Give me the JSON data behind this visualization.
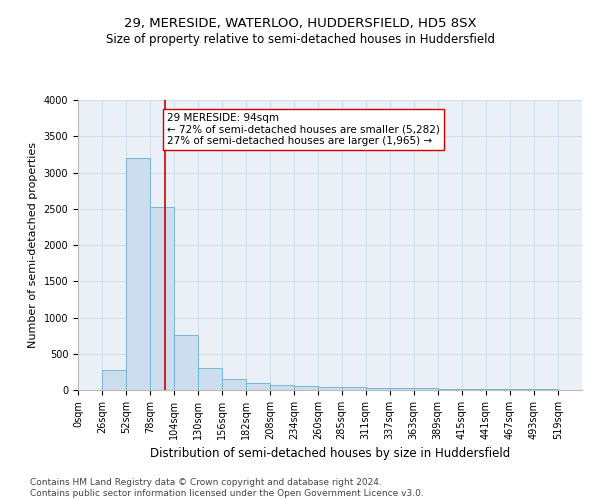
{
  "title": "29, MERESIDE, WATERLOO, HUDDERSFIELD, HD5 8SX",
  "subtitle": "Size of property relative to semi-detached houses in Huddersfield",
  "xlabel": "Distribution of semi-detached houses by size in Huddersfield",
  "ylabel": "Number of semi-detached properties",
  "footnote": "Contains HM Land Registry data © Crown copyright and database right 2024.\nContains public sector information licensed under the Open Government Licence v3.0.",
  "bar_color": "#ccdded",
  "bar_edge_color": "#6aadd5",
  "bin_starts": [
    0,
    26,
    52,
    78,
    104,
    130,
    156,
    182,
    208,
    234,
    260,
    285,
    311,
    337,
    363,
    389,
    415,
    441,
    467,
    493
  ],
  "bin_width": 26,
  "bar_heights": [
    0,
    275,
    3200,
    2520,
    760,
    300,
    145,
    90,
    65,
    50,
    45,
    35,
    30,
    25,
    22,
    18,
    15,
    12,
    10,
    8
  ],
  "property_size": 94,
  "red_line_color": "#cc0000",
  "annotation_line1": "29 MERESIDE: 94sqm",
  "annotation_line2": "← 72% of semi-detached houses are smaller (5,282)",
  "annotation_line3": "27% of semi-detached houses are larger (1,965) →",
  "annotation_box_color": "#ffffff",
  "annotation_box_edge": "#cc0000",
  "ylim": [
    0,
    4000
  ],
  "yticks": [
    0,
    500,
    1000,
    1500,
    2000,
    2500,
    3000,
    3500,
    4000
  ],
  "tick_labels": [
    "0sqm",
    "26sqm",
    "52sqm",
    "78sqm",
    "104sqm",
    "130sqm",
    "156sqm",
    "182sqm",
    "208sqm",
    "234sqm",
    "260sqm",
    "285sqm",
    "311sqm",
    "337sqm",
    "363sqm",
    "389sqm",
    "415sqm",
    "441sqm",
    "467sqm",
    "493sqm",
    "519sqm"
  ],
  "grid_color": "#d0dce8",
  "background_color": "#eaf0f6",
  "title_fontsize": 9.5,
  "subtitle_fontsize": 8.5,
  "xlabel_fontsize": 8.5,
  "ylabel_fontsize": 8,
  "tick_fontsize": 7,
  "annotation_fontsize": 7.5,
  "footnote_fontsize": 6.5
}
